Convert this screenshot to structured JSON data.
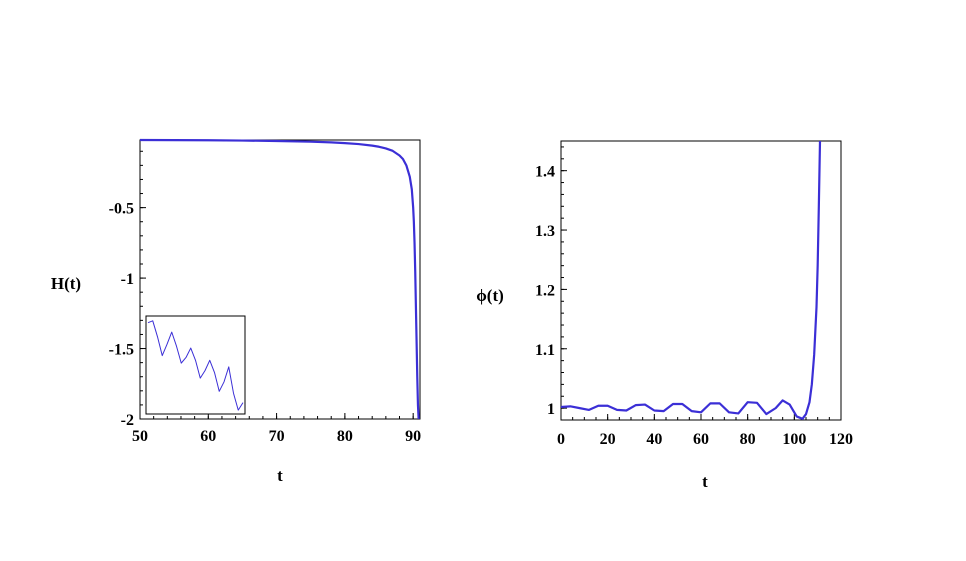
{
  "chart_data": [
    {
      "type": "line",
      "xlabel": "t",
      "ylabel": "H(t)",
      "xlim": [
        50,
        91
      ],
      "ylim": [
        -2,
        -0.02
      ],
      "x_ticks": [
        50,
        60,
        70,
        80,
        90
      ],
      "x_tick_labels": [
        "50",
        "60",
        "70",
        "80",
        "90"
      ],
      "y_ticks": [
        -0.5,
        -1,
        -1.5,
        -2
      ],
      "y_tick_labels": [
        "-0.5",
        "-1",
        "-1.5",
        "-2"
      ],
      "grid": false,
      "color": "#3b2fd6",
      "series": [
        {
          "x": [
            50,
            55,
            60,
            65,
            70,
            75,
            78,
            80,
            82,
            84,
            85,
            86,
            87,
            88,
            88.5,
            89,
            89.5,
            89.8,
            90,
            90.1,
            90.2,
            90.3,
            90.4,
            90.5,
            90.6,
            90.7,
            90.8
          ],
          "y": [
            -0.02,
            -0.021,
            -0.022,
            -0.024,
            -0.027,
            -0.032,
            -0.037,
            -0.042,
            -0.049,
            -0.06,
            -0.068,
            -0.08,
            -0.097,
            -0.13,
            -0.155,
            -0.2,
            -0.28,
            -0.37,
            -0.5,
            -0.6,
            -0.75,
            -0.95,
            -1.2,
            -1.45,
            -1.7,
            -1.9,
            -2
          ]
        }
      ],
      "inset": {
        "type": "line",
        "description_values": true,
        "x": [
          0,
          0.05,
          0.1,
          0.15,
          0.2,
          0.25,
          0.3,
          0.35,
          0.4,
          0.45,
          0.5,
          0.55,
          0.6,
          0.65,
          0.7,
          0.75,
          0.8,
          0.85,
          0.9,
          0.95,
          1.0
        ],
        "y": [
          0.95,
          0.97,
          0.8,
          0.6,
          0.72,
          0.85,
          0.7,
          0.52,
          0.58,
          0.68,
          0.55,
          0.36,
          0.44,
          0.55,
          0.42,
          0.22,
          0.32,
          0.48,
          0.2,
          0.02,
          0.1
        ]
      }
    },
    {
      "type": "line",
      "xlabel": "t",
      "ylabel": "ϕ(t)",
      "xlim": [
        0,
        120
      ],
      "ylim": [
        0.98,
        1.45
      ],
      "x_ticks": [
        0,
        20,
        40,
        60,
        80,
        100,
        120
      ],
      "x_tick_labels": [
        "0",
        "20",
        "40",
        "60",
        "80",
        "100",
        "120"
      ],
      "y_ticks": [
        1,
        1.1,
        1.2,
        1.3,
        1.4
      ],
      "y_tick_labels": [
        "1",
        "1.1",
        "1.2",
        "1.3",
        "1.4"
      ],
      "grid": false,
      "color": "#3b2fd6",
      "series": [
        {
          "x": [
            0,
            4,
            8,
            12,
            16,
            20,
            24,
            28,
            32,
            36,
            40,
            44,
            48,
            52,
            56,
            60,
            64,
            68,
            72,
            76,
            80,
            84,
            88,
            92,
            95,
            98,
            101,
            103.5,
            105,
            106.5,
            107.5,
            108.5,
            109.5,
            110,
            110.5,
            111
          ],
          "y": [
            1.002,
            1.003,
            1.0,
            0.997,
            1.004,
            1.004,
            0.997,
            0.996,
            1.005,
            1.006,
            0.996,
            0.995,
            1.007,
            1.007,
            0.995,
            0.993,
            1.008,
            1.008,
            0.993,
            0.991,
            1.01,
            1.009,
            0.99,
            1.0,
            1.013,
            1.006,
            0.986,
            0.982,
            0.99,
            1.01,
            1.04,
            1.09,
            1.17,
            1.24,
            1.34,
            1.45
          ]
        }
      ]
    }
  ]
}
